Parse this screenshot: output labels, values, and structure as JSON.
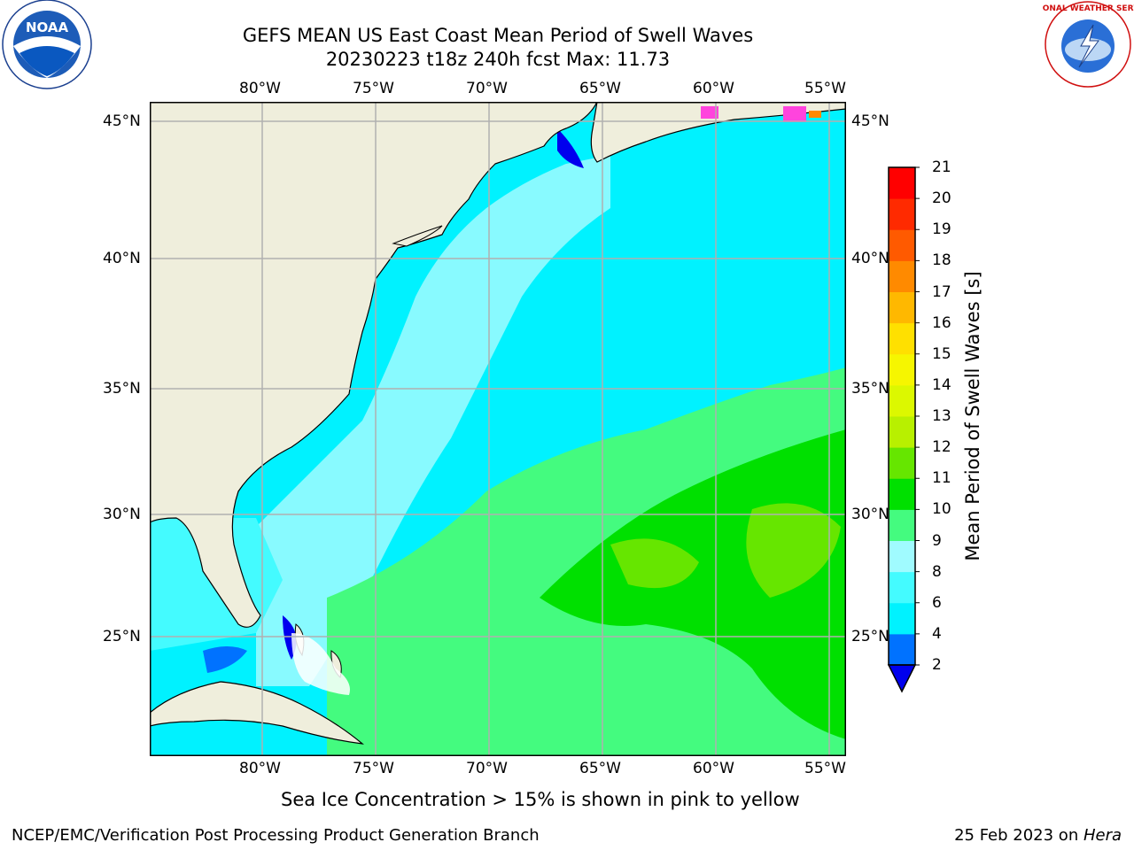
{
  "title": {
    "line1": "GEFS MEAN US East Coast Mean Period of Swell Waves",
    "line2": "20230223 t18z 240h fcst   Max: 11.73"
  },
  "map": {
    "lon_labels": [
      "80°W",
      "75°W",
      "70°W",
      "65°W",
      "60°W",
      "55°W"
    ],
    "lat_labels": [
      "45°N",
      "40°N",
      "35°N",
      "30°N",
      "25°N"
    ],
    "colors": {
      "land": "#efeedc",
      "gridline": "#b0b0b0",
      "ice": "#ff44dd"
    }
  },
  "colorbar": {
    "label": "Mean Period of Swell Waves [s]",
    "ticks": [
      "2",
      "4",
      "6",
      "8",
      "9",
      "10",
      "11",
      "12",
      "13",
      "14",
      "15",
      "16",
      "17",
      "18",
      "19",
      "20",
      "21"
    ],
    "colors": [
      "#0072ff",
      "#00f2ff",
      "#44fbff",
      "#a0fbff",
      "#44fb7f",
      "#00e000",
      "#66e600",
      "#b8f000",
      "#dcf800",
      "#f6f600",
      "#ffe000",
      "#ffb800",
      "#ff8a00",
      "#ff5a00",
      "#ff2a00",
      "#ff0000"
    ],
    "under_color": "#0000ee"
  },
  "note": "Sea Ice Concentration > 15% is shown in pink to yellow",
  "footer": {
    "left": "NCEP/EMC/Verification Post Processing Product Generation Branch",
    "date": "25 Feb 2023 on ",
    "host": "Hera"
  },
  "logos": {
    "noaa_text": "NOAA",
    "nws_text": "NATIONAL WEATHER SERVICE"
  }
}
